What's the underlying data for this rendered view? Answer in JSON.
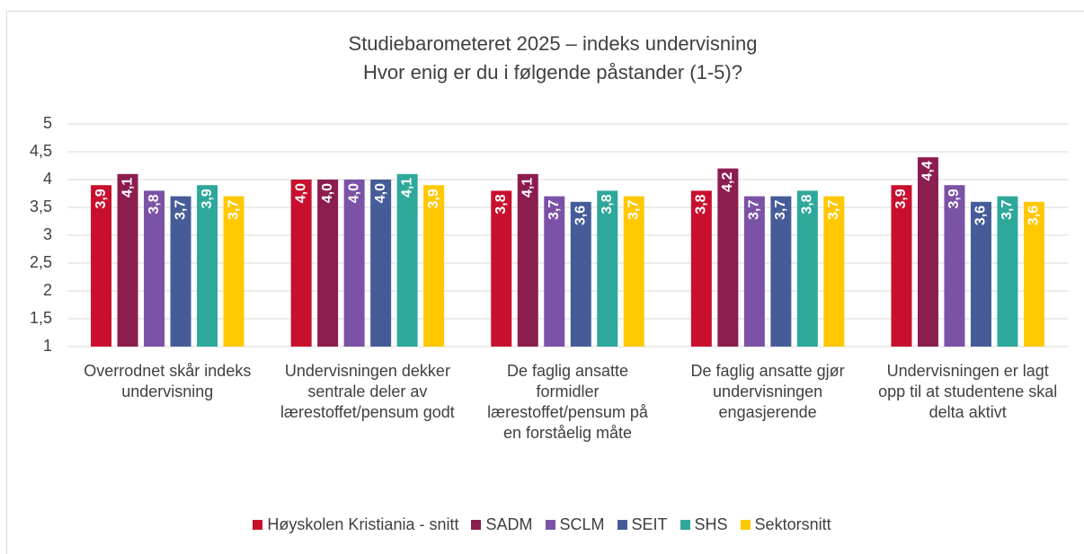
{
  "chart_data": {
    "type": "bar",
    "title": "Studiebarometeret 2025 – indeks undervisning",
    "subtitle": "Hvor enig er du i følgende påstander (1-5)?",
    "categories": [
      "Overrodnet skår indeks undervisning",
      "Undervisningen dekker sentrale deler av lærestoffet/pensum godt",
      "De faglig ansatte formidler lærestoffet/pensum på en forståelig måte",
      "De faglig ansatte gjør undervisningen engasjerende",
      "Undervisningen er lagt opp til at studentene skal delta aktivt"
    ],
    "series": [
      {
        "name": "Høyskolen Kristiania - snitt",
        "color": "#c8102e",
        "values": [
          3.9,
          4.0,
          3.8,
          3.8,
          3.9
        ],
        "value_labels": [
          "3,9",
          "4,0",
          "3,8",
          "3,8",
          "3,9"
        ]
      },
      {
        "name": "SADM",
        "color": "#8c1d4f",
        "values": [
          4.1,
          4.0,
          4.1,
          4.2,
          4.4
        ],
        "value_labels": [
          "4,1",
          "4,0",
          "4,1",
          "4,2",
          "4,4"
        ]
      },
      {
        "name": "SCLM",
        "color": "#7b52a6",
        "values": [
          3.8,
          4.0,
          3.7,
          3.7,
          3.9
        ],
        "value_labels": [
          "3,8",
          "4,0",
          "3,7",
          "3,7",
          "3,9"
        ]
      },
      {
        "name": "SEIT",
        "color": "#465c99",
        "values": [
          3.7,
          4.0,
          3.6,
          3.7,
          3.6
        ],
        "value_labels": [
          "3,7",
          "4,0",
          "3,6",
          "3,7",
          "3,6"
        ]
      },
      {
        "name": "SHS",
        "color": "#2ea89a",
        "values": [
          3.9,
          4.1,
          3.8,
          3.8,
          3.7
        ],
        "value_labels": [
          "3,9",
          "4,1",
          "3,8",
          "3,8",
          "3,7"
        ]
      },
      {
        "name": "Sektorsnitt",
        "color": "#ffc800",
        "values": [
          3.7,
          3.9,
          3.7,
          3.7,
          3.6
        ],
        "value_labels": [
          "3,7",
          "3,9",
          "3,7",
          "3,7",
          "3,6"
        ]
      }
    ],
    "ylim": [
      1,
      5
    ],
    "yticks": [
      1,
      {
        "value": 1.5,
        "label": "1,5"
      },
      2,
      {
        "value": 2.5,
        "label": "2,5"
      },
      3,
      {
        "value": 3.5,
        "label": "3,5"
      },
      4,
      {
        "value": 4.5,
        "label": "4,5"
      },
      5
    ],
    "grid": true,
    "legend": "bottom"
  }
}
